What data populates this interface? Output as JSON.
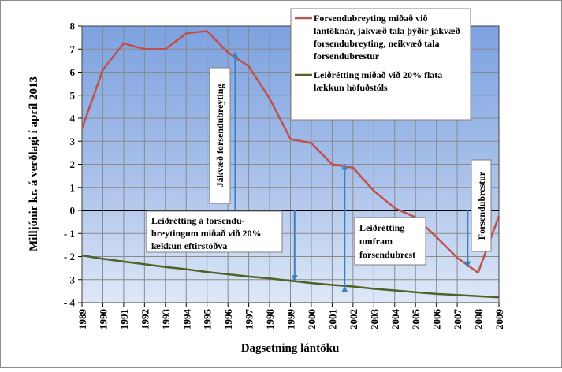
{
  "chart_data": {
    "type": "line",
    "title": "",
    "xlabel": "Dagsetning lántöku",
    "ylabel": "Milljónir kr. á verðlagi í apríl 2013",
    "x": [
      1989,
      1990,
      1991,
      1992,
      1993,
      1994,
      1995,
      1996,
      1997,
      1998,
      1999,
      2000,
      2001,
      2002,
      2003,
      2004,
      2005,
      2006,
      2007,
      2008,
      2009
    ],
    "xlim": [
      1989,
      2009
    ],
    "ylim": [
      -4,
      8
    ],
    "yticks": [
      -4,
      -3,
      -2,
      -1,
      0,
      1,
      2,
      3,
      4,
      5,
      6,
      7,
      8
    ],
    "ytick_labels": [
      "- 4",
      "- 3",
      "- 2",
      "- 1",
      "0",
      "1",
      "2",
      "3",
      "4",
      "5",
      "6",
      "7",
      "8"
    ],
    "grid": true,
    "series": [
      {
        "name": "Forsendubreyting miðað við lántöknár, jákvæð tala þýðir jákvæð forsendubreyting, neikvæð tala forsendubrestur",
        "color": "#c0504d",
        "x": [
          1989,
          1990,
          1991,
          1992,
          1993,
          1994,
          1995,
          1996,
          1997,
          1998,
          1999,
          2000,
          2001,
          2002,
          2003,
          2004,
          2005,
          2006,
          2007,
          2008,
          2009
        ],
        "values": [
          3.55,
          6.1,
          7.25,
          7.0,
          7.0,
          7.68,
          7.78,
          6.85,
          6.25,
          4.85,
          3.1,
          2.92,
          2.0,
          1.85,
          0.85,
          0.1,
          -0.3,
          -1.15,
          -2.05,
          -2.7,
          -0.25
        ]
      },
      {
        "name": "Leiðrétting miðað við 20% flata lækkun höfuðstóls",
        "color": "#4f6228",
        "x": [
          1989,
          1990,
          1991,
          1992,
          1993,
          1994,
          1995,
          1996,
          1997,
          1998,
          1999,
          2000,
          2001,
          2002,
          2003,
          2004,
          2005,
          2006,
          2007,
          2008,
          2009
        ],
        "values": [
          -1.95,
          -2.1,
          -2.22,
          -2.33,
          -2.45,
          -2.55,
          -2.67,
          -2.77,
          -2.87,
          -2.95,
          -3.05,
          -3.15,
          -3.23,
          -3.3,
          -3.4,
          -3.47,
          -3.55,
          -3.62,
          -3.67,
          -3.72,
          -3.77
        ]
      }
    ],
    "legend": {
      "placement": "top-right"
    },
    "annotations": [
      {
        "text": "Jákvæð forsendubreyting",
        "orientation": "vertical",
        "arrow_x": 1996.35,
        "arrow_from": 0,
        "arrow_to": 6.85
      },
      {
        "text": "Leiðrétting á forsendu-\nbreytingum miðað við 20%\nlækkun eftirstöðva",
        "orientation": "horizontal",
        "arrow_x": 1999.2,
        "arrow_from": 0,
        "arrow_to": -3.05
      },
      {
        "text": "Leiðrétting\numfram\nforsendubrest",
        "orientation": "horizontal",
        "arrow_x": 2001.6,
        "arrow_from": -3.3,
        "arrow_to": 2.0
      },
      {
        "text": "Forsendubrestur",
        "orientation": "vertical",
        "arrow_x": 2007.5,
        "arrow_from": 0,
        "arrow_to": -2.45
      }
    ]
  }
}
